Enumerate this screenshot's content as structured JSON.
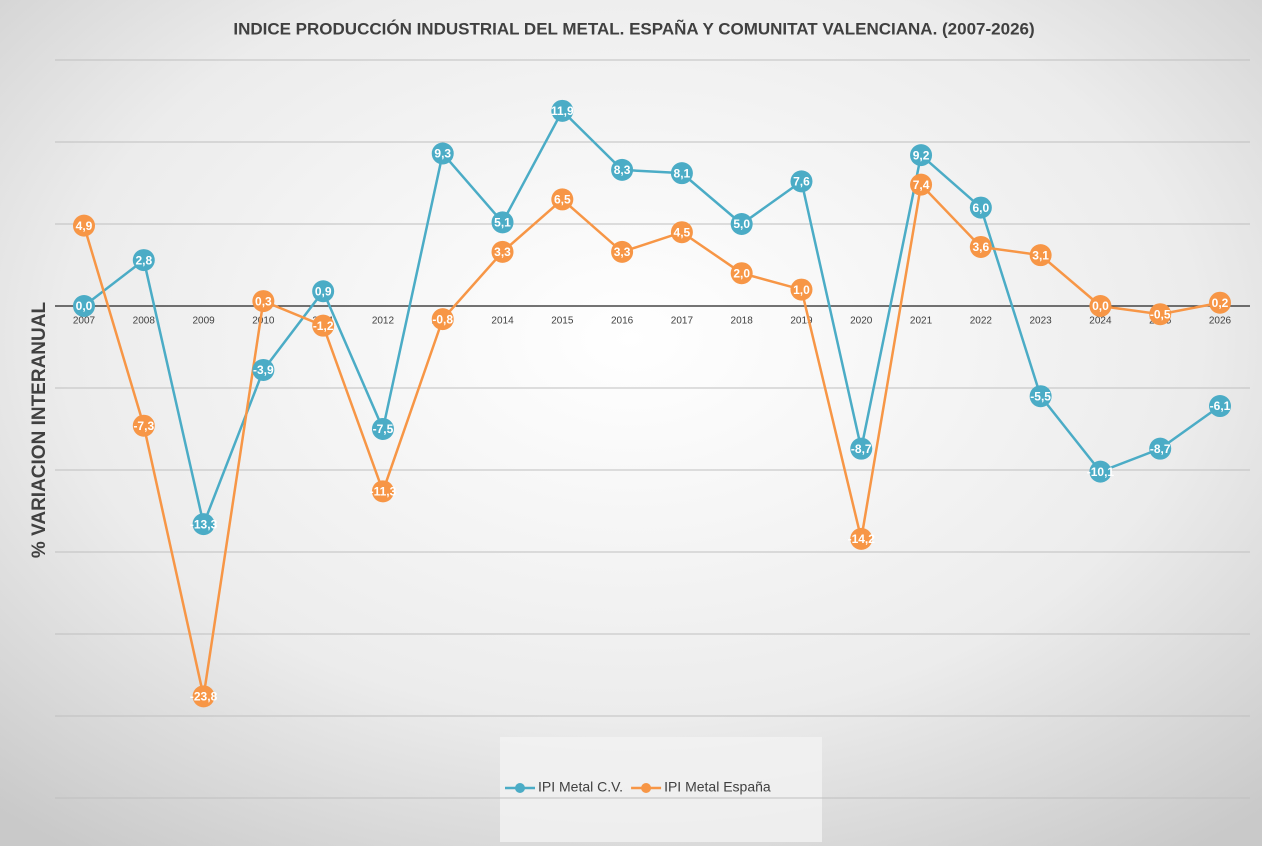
{
  "chart_data": {
    "type": "line",
    "title": "INDICE PRODUCCIÓN INDUSTRIAL DEL METAL. ESPAÑA Y COMUNITAT VALENCIANA. (2007-2026)",
    "y_label": "% VARIACION INTERANUAL",
    "categories": [
      "2007",
      "2008",
      "2009",
      "2010",
      "2011",
      "2012",
      "2013",
      "2014",
      "2015",
      "2016",
      "2017",
      "2018",
      "2019",
      "2020",
      "2021",
      "2022",
      "2023",
      "2024",
      "2025",
      "2026"
    ],
    "ylim": [
      -30,
      15
    ],
    "yticks": [
      -30,
      -25,
      -20,
      -15,
      -10,
      -5,
      0,
      5,
      10,
      15
    ],
    "grid": true,
    "legend": "bottom",
    "series": [
      {
        "name": "IPI Metal C.V.",
        "color": "#4bacc6",
        "values": [
          0.0,
          2.8,
          -13.3,
          -3.9,
          0.9,
          -7.5,
          9.3,
          5.1,
          11.9,
          8.3,
          8.1,
          5.0,
          7.6,
          -8.7,
          9.2,
          6.0,
          -5.5,
          -10.1,
          -8.7,
          -6.1
        ],
        "value_labels": [
          "0,0",
          "2,8",
          "-13,3",
          "-3,9",
          "0,9",
          "-7,5",
          "9,3",
          "5,1",
          "11,9",
          "8,3",
          "8,1",
          "5,0",
          "7,6",
          "-8,7",
          "9,2",
          "6,0",
          "-5,5",
          "-10,1",
          "-8,7",
          "-6,1"
        ]
      },
      {
        "name": "IPI Metal España",
        "color": "#f79646",
        "values": [
          4.9,
          -7.3,
          -23.8,
          0.3,
          -1.2,
          -11.3,
          -0.8,
          3.3,
          6.5,
          3.3,
          4.5,
          2.0,
          1.0,
          -14.2,
          7.4,
          3.6,
          3.1,
          0.0,
          -0.5,
          0.2
        ],
        "value_labels": [
          "4,9",
          "-7,3",
          "-23,8",
          "0,3",
          "-1,2",
          "-11,3",
          "-0,8",
          "3,3",
          "6,5",
          "3,3",
          "4,5",
          "2,0",
          "1,0",
          "-14,2",
          "7,4",
          "3,6",
          "3,1",
          "0,0",
          "-0,5",
          "0,2"
        ]
      }
    ]
  }
}
